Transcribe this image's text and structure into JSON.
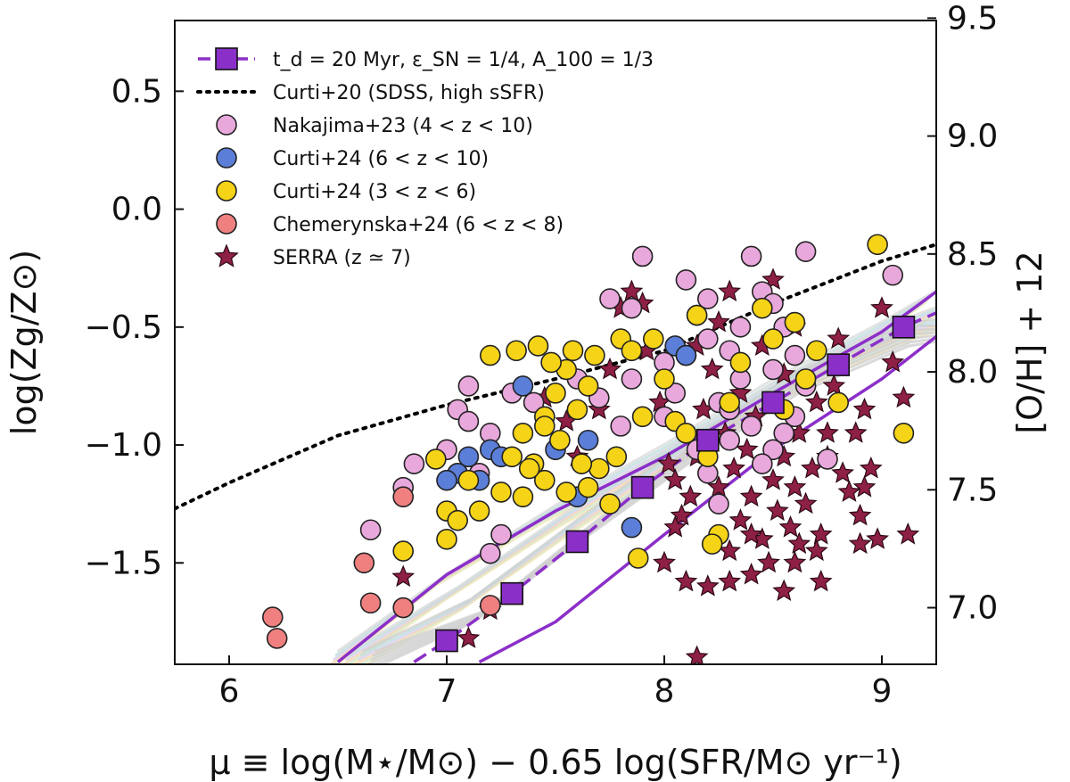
{
  "chart_data": {
    "type": "scatter",
    "xlabel": "μ ≡ log(M⋆/M⊙) − 0.65 log(SFR/M⊙ yr⁻¹)",
    "ylabel": "log(Zg/Z⊙)",
    "y2label": "[O/H] + 12",
    "xlim": [
      5.75,
      9.25
    ],
    "ylim": [
      -1.93,
      0.8
    ],
    "y2lim": [
      6.76,
      9.49
    ],
    "xticks": [
      "6",
      "7",
      "8",
      "9"
    ],
    "yticks": [
      "0.5",
      "0.0",
      "−0.5",
      "−1.0",
      "−1.5"
    ],
    "y2ticks": [
      "9.5",
      "9.0",
      "8.5",
      "8.0",
      "7.5",
      "7.0"
    ],
    "legend_position": "top-left",
    "legend": [
      {
        "key": "model",
        "label": "t_d = 20 Myr, ε_SN = 1/4, A_100 = 1/3",
        "color": "#8b2fc9"
      },
      {
        "key": "curti20",
        "label": "Curti+20 (SDSS, high sSFR)",
        "color": "#000000"
      },
      {
        "key": "nakajima",
        "label": "Nakajima+23 (4 < z < 10)",
        "color": "#e9a8dc"
      },
      {
        "key": "curti24hi",
        "label": "Curti+24 (6 < z < 10)",
        "color": "#5b7fd8"
      },
      {
        "key": "curti24lo",
        "label": "Curti+24 (3 < z < 6)",
        "color": "#f5d316"
      },
      {
        "key": "chemerynska",
        "label": "Chemerynska+24 (6 < z < 8)",
        "color": "#f08080"
      },
      {
        "key": "serra",
        "label": "SERRA (z ≃ 7)",
        "color": "#8e1f45"
      }
    ],
    "series": [
      {
        "name": "Curti+20 (SDSS, high sSFR)",
        "style": "dotted",
        "points": [
          [
            5.75,
            -1.27
          ],
          [
            6.0,
            -1.16
          ],
          [
            6.5,
            -0.96
          ],
          [
            7.0,
            -0.83
          ],
          [
            7.5,
            -0.72
          ],
          [
            8.0,
            -0.6
          ],
          [
            8.5,
            -0.4
          ],
          [
            9.0,
            -0.22
          ],
          [
            9.25,
            -0.15
          ]
        ]
      },
      {
        "name": "Model median",
        "style": "dashed",
        "points": [
          [
            6.85,
            -1.92
          ],
          [
            7.0,
            -1.83
          ],
          [
            7.3,
            -1.63
          ],
          [
            7.6,
            -1.41
          ],
          [
            7.9,
            -1.18
          ],
          [
            8.2,
            -0.98
          ],
          [
            8.5,
            -0.82
          ],
          [
            8.8,
            -0.66
          ],
          [
            9.1,
            -0.5
          ],
          [
            9.25,
            -0.44
          ]
        ]
      },
      {
        "name": "Model upper",
        "style": "solid",
        "points": [
          [
            6.5,
            -1.92
          ],
          [
            7.0,
            -1.55
          ],
          [
            7.5,
            -1.28
          ],
          [
            8.0,
            -1.05
          ],
          [
            8.5,
            -0.78
          ],
          [
            9.0,
            -0.52
          ],
          [
            9.25,
            -0.35
          ]
        ]
      },
      {
        "name": "Model lower",
        "style": "solid",
        "points": [
          [
            7.15,
            -1.92
          ],
          [
            7.5,
            -1.75
          ],
          [
            8.0,
            -1.38
          ],
          [
            8.5,
            -1.02
          ],
          [
            9.0,
            -0.72
          ],
          [
            9.25,
            -0.54
          ]
        ]
      },
      {
        "name": "Model markers",
        "style": "squares",
        "points": [
          [
            7.0,
            -1.83
          ],
          [
            7.3,
            -1.63
          ],
          [
            7.6,
            -1.41
          ],
          [
            7.9,
            -1.18
          ],
          [
            8.2,
            -0.98
          ],
          [
            8.5,
            -0.82
          ],
          [
            8.8,
            -0.66
          ],
          [
            9.1,
            -0.5
          ]
        ]
      },
      {
        "name": "Nakajima+23 (4 < z < 10)",
        "points": [
          [
            6.65,
            -1.36
          ],
          [
            6.8,
            -1.18
          ],
          [
            6.85,
            -1.08
          ],
          [
            7.0,
            -1.02
          ],
          [
            7.05,
            -0.85
          ],
          [
            7.1,
            -0.9
          ],
          [
            7.2,
            -0.95
          ],
          [
            7.15,
            -1.12
          ],
          [
            7.25,
            -1.38
          ],
          [
            7.3,
            -0.78
          ],
          [
            7.2,
            -1.46
          ],
          [
            7.1,
            -0.75
          ],
          [
            7.4,
            -0.82
          ],
          [
            7.6,
            -0.72
          ],
          [
            7.7,
            -0.8
          ],
          [
            7.85,
            -0.72
          ],
          [
            7.9,
            -0.2
          ],
          [
            7.8,
            -0.92
          ],
          [
            7.75,
            -0.38
          ],
          [
            7.85,
            -0.42
          ],
          [
            8.0,
            -0.65
          ],
          [
            8.05,
            -0.78
          ],
          [
            8.1,
            -0.3
          ],
          [
            8.15,
            -0.45
          ],
          [
            8.2,
            -0.55
          ],
          [
            8.25,
            -0.82
          ],
          [
            8.3,
            -0.6
          ],
          [
            8.35,
            -0.72
          ],
          [
            8.4,
            -0.92
          ],
          [
            8.45,
            -0.35
          ],
          [
            8.5,
            -0.68
          ],
          [
            8.55,
            -0.5
          ],
          [
            8.6,
            -0.88
          ],
          [
            8.65,
            -0.18
          ],
          [
            8.4,
            -0.2
          ],
          [
            8.3,
            -0.98
          ],
          [
            8.5,
            -1.02
          ],
          [
            8.25,
            -1.25
          ],
          [
            8.45,
            -1.08
          ],
          [
            8.2,
            -1.12
          ],
          [
            8.6,
            -0.62
          ],
          [
            8.55,
            -0.95
          ],
          [
            8.2,
            -0.38
          ],
          [
            8.1,
            -0.62
          ],
          [
            8.0,
            -0.88
          ],
          [
            8.15,
            -1.02
          ],
          [
            8.3,
            -0.85
          ],
          [
            8.65,
            -0.75
          ],
          [
            9.05,
            -0.28
          ],
          [
            8.75,
            -1.06
          ],
          [
            8.35,
            -0.5
          ],
          [
            8.5,
            -0.4
          ]
        ]
      },
      {
        "name": "Curti+24 (6 < z < 10)",
        "points": [
          [
            7.1,
            -1.05
          ],
          [
            7.15,
            -1.15
          ],
          [
            7.2,
            -1.02
          ],
          [
            7.35,
            -0.75
          ],
          [
            7.5,
            -1.02
          ],
          [
            7.6,
            -1.22
          ],
          [
            7.85,
            -1.35
          ],
          [
            8.05,
            -0.58
          ],
          [
            8.1,
            -0.62
          ],
          [
            7.65,
            -0.98
          ],
          [
            7.05,
            -1.12
          ],
          [
            7.25,
            -1.05
          ],
          [
            7.0,
            -1.15
          ]
        ]
      },
      {
        "name": "Curti+24 (3 < z < 6)",
        "points": [
          [
            6.8,
            -1.45
          ],
          [
            6.95,
            -1.06
          ],
          [
            7.0,
            -1.28
          ],
          [
            7.05,
            -1.32
          ],
          [
            7.1,
            -1.15
          ],
          [
            7.2,
            -0.62
          ],
          [
            7.25,
            -1.2
          ],
          [
            7.3,
            -1.05
          ],
          [
            7.35,
            -0.95
          ],
          [
            7.4,
            -1.08
          ],
          [
            7.45,
            -0.88
          ],
          [
            7.5,
            -0.78
          ],
          [
            7.55,
            -0.68
          ],
          [
            7.6,
            -0.85
          ],
          [
            7.65,
            -0.75
          ],
          [
            7.7,
            -1.1
          ],
          [
            7.75,
            -1.25
          ],
          [
            7.8,
            -0.55
          ],
          [
            7.85,
            -0.6
          ],
          [
            7.9,
            -0.88
          ],
          [
            7.95,
            -0.55
          ],
          [
            8.0,
            -0.72
          ],
          [
            8.05,
            -0.9
          ],
          [
            8.1,
            -0.95
          ],
          [
            8.15,
            -0.45
          ],
          [
            8.2,
            -1.05
          ],
          [
            8.25,
            -1.38
          ],
          [
            8.3,
            -0.82
          ],
          [
            8.35,
            -0.65
          ],
          [
            8.45,
            -0.42
          ],
          [
            8.5,
            -0.55
          ],
          [
            8.55,
            -0.85
          ],
          [
            8.6,
            -0.48
          ],
          [
            8.65,
            -0.72
          ],
          [
            8.7,
            -0.6
          ],
          [
            8.8,
            -0.82
          ],
          [
            8.98,
            -0.15
          ],
          [
            9.1,
            -0.95
          ],
          [
            7.42,
            -0.58
          ],
          [
            7.32,
            -0.6
          ],
          [
            7.52,
            -0.98
          ],
          [
            7.62,
            -1.08
          ],
          [
            7.0,
            -1.4
          ],
          [
            7.15,
            -1.28
          ],
          [
            7.55,
            -1.2
          ],
          [
            7.45,
            -1.15
          ],
          [
            7.38,
            -1.1
          ],
          [
            7.48,
            -0.65
          ],
          [
            7.58,
            -0.6
          ],
          [
            7.68,
            -0.62
          ],
          [
            7.78,
            -1.05
          ],
          [
            7.88,
            -1.48
          ],
          [
            8.22,
            -1.42
          ],
          [
            7.65,
            -1.18
          ],
          [
            7.45,
            -0.92
          ],
          [
            7.35,
            -1.22
          ]
        ]
      },
      {
        "name": "Chemerynska+24 (6 < z < 8)",
        "points": [
          [
            6.2,
            -1.73
          ],
          [
            6.22,
            -1.82
          ],
          [
            6.62,
            -1.5
          ],
          [
            6.65,
            -1.67
          ],
          [
            6.8,
            -1.22
          ],
          [
            6.8,
            -1.69
          ],
          [
            7.2,
            -1.68
          ]
        ]
      },
      {
        "name": "SERRA (z ≃ 7)",
        "points": [
          [
            6.8,
            -1.56
          ],
          [
            7.1,
            -1.82
          ],
          [
            7.2,
            -1.7
          ],
          [
            7.45,
            -0.8
          ],
          [
            7.55,
            -0.9
          ],
          [
            7.6,
            -1.05
          ],
          [
            7.7,
            -0.85
          ],
          [
            7.75,
            -0.68
          ],
          [
            7.8,
            -0.42
          ],
          [
            7.85,
            -0.35
          ],
          [
            7.92,
            -0.6
          ],
          [
            7.98,
            -0.82
          ],
          [
            8.02,
            -1.08
          ],
          [
            8.05,
            -1.15
          ],
          [
            8.08,
            -1.3
          ],
          [
            8.12,
            -1.22
          ],
          [
            8.15,
            -1.05
          ],
          [
            8.18,
            -0.85
          ],
          [
            8.22,
            -0.68
          ],
          [
            8.25,
            -0.48
          ],
          [
            8.28,
            -0.95
          ],
          [
            8.3,
            -1.45
          ],
          [
            8.32,
            -1.1
          ],
          [
            8.35,
            -1.32
          ],
          [
            8.38,
            -1.02
          ],
          [
            8.4,
            -1.22
          ],
          [
            8.42,
            -0.88
          ],
          [
            8.45,
            -1.4
          ],
          [
            8.48,
            -1.5
          ],
          [
            8.5,
            -1.15
          ],
          [
            8.52,
            -1.28
          ],
          [
            8.55,
            -1.05
          ],
          [
            8.58,
            -1.35
          ],
          [
            8.6,
            -1.18
          ],
          [
            8.62,
            -0.95
          ],
          [
            8.65,
            -1.25
          ],
          [
            8.68,
            -1.1
          ],
          [
            8.7,
            -0.82
          ],
          [
            8.72,
            -1.38
          ],
          [
            8.75,
            -1.05
          ],
          [
            8.78,
            -0.75
          ],
          [
            8.8,
            -0.55
          ],
          [
            8.85,
            -1.2
          ],
          [
            8.88,
            -0.95
          ],
          [
            8.9,
            -1.3
          ],
          [
            8.92,
            -0.85
          ],
          [
            8.95,
            -1.1
          ],
          [
            8.98,
            -1.4
          ],
          [
            9.0,
            -0.42
          ],
          [
            9.05,
            -0.65
          ],
          [
            9.1,
            -0.8
          ],
          [
            9.12,
            -1.38
          ],
          [
            8.1,
            -1.58
          ],
          [
            8.2,
            -1.6
          ],
          [
            8.3,
            -1.58
          ],
          [
            8.4,
            -1.55
          ],
          [
            8.6,
            -1.5
          ],
          [
            8.7,
            -1.45
          ],
          [
            8.15,
            -1.9
          ],
          [
            8.9,
            -1.42
          ],
          [
            8.0,
            -1.5
          ],
          [
            8.6,
            -0.5
          ],
          [
            8.5,
            -0.3
          ],
          [
            7.9,
            -0.4
          ],
          [
            8.45,
            -0.58
          ],
          [
            8.35,
            -0.78
          ],
          [
            8.55,
            -0.7
          ],
          [
            8.75,
            -0.95
          ],
          [
            8.25,
            -1.18
          ],
          [
            8.05,
            -1.35
          ],
          [
            8.4,
            -1.38
          ],
          [
            8.62,
            -1.42
          ],
          [
            8.82,
            -1.12
          ],
          [
            8.92,
            -1.18
          ],
          [
            8.3,
            -0.35
          ],
          [
            8.15,
            -0.58
          ],
          [
            8.55,
            -1.62
          ],
          [
            8.72,
            -1.58
          ]
        ]
      }
    ]
  }
}
